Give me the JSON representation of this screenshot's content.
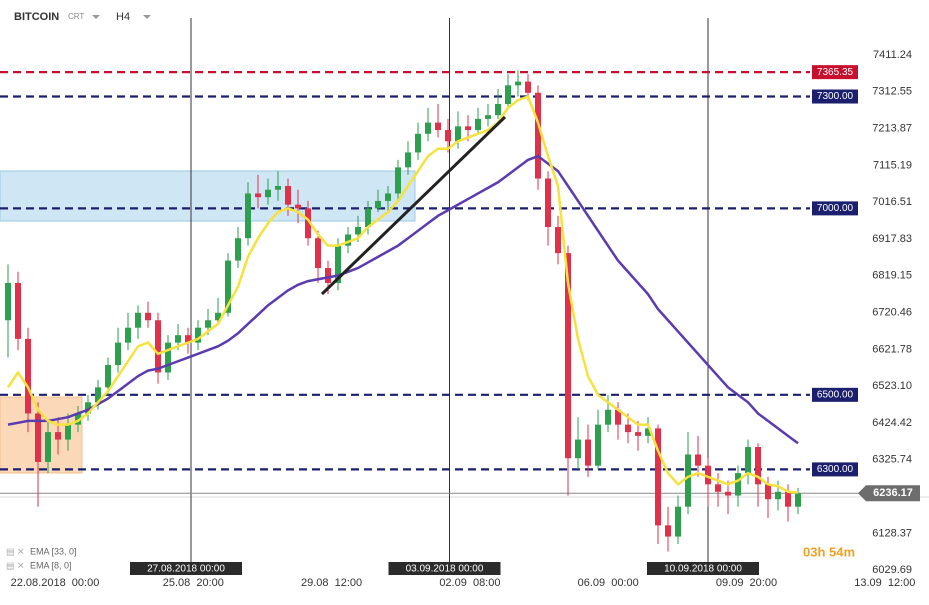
{
  "chart_data": {
    "type": "candlestick",
    "header": {
      "symbol": "BITCOIN",
      "source": "CRT",
      "timeframe": "H4"
    },
    "countdown": "03h 54m",
    "ylim": [
      5990,
      7532
    ],
    "yticks": [
      7411.24,
      7312.55,
      7213.87,
      7115.19,
      7016.51,
      6917.83,
      6819.15,
      6720.46,
      6621.78,
      {
        "value": 6523.1,
        "label": "6523.10"
      },
      6424.42,
      6325.74,
      6128.37,
      6029.69
    ],
    "xlabels": [
      "22.08.2018  00:00",
      "25.08  20:00",
      "29.08  12:00",
      "02.09  08:00",
      "06.09  00:00",
      "09.09  20:00",
      "13.09  12:00"
    ],
    "markers": [
      "27.08.2018 00:00",
      "03.09.2018 00:00",
      "10.09.2018 00:00"
    ],
    "up_color": "#2e9e4f",
    "down_color": "#e0314b",
    "levels": [
      {
        "value": 7365.35,
        "color": "#c8102e"
      },
      {
        "value": 7300,
        "label": "7300.00",
        "color": "#1b1f6e"
      },
      {
        "value": 7000,
        "label": "7000.00",
        "color": "#1b1f6e"
      },
      {
        "value": 6500,
        "label": "6500.00",
        "color": "#1b1f6e"
      },
      {
        "value": 6300,
        "label": "6300.00",
        "color": "#1b1f6e"
      }
    ],
    "last_price": 6236.17,
    "candles": [
      [
        6700,
        6850,
        6600,
        6800
      ],
      [
        6800,
        6830,
        6620,
        6650
      ],
      [
        6650,
        6680,
        6400,
        6450
      ],
      [
        6450,
        6480,
        6200,
        6320
      ],
      [
        6320,
        6430,
        6290,
        6400
      ],
      [
        6400,
        6440,
        6340,
        6380
      ],
      [
        6380,
        6450,
        6350,
        6420
      ],
      [
        6420,
        6470,
        6400,
        6450
      ],
      [
        6450,
        6500,
        6430,
        6480
      ],
      [
        6480,
        6540,
        6460,
        6520
      ],
      [
        6520,
        6600,
        6500,
        6580
      ],
      [
        6580,
        6680,
        6560,
        6640
      ],
      [
        6640,
        6720,
        6620,
        6680
      ],
      [
        6680,
        6740,
        6650,
        6720
      ],
      [
        6720,
        6750,
        6680,
        6700
      ],
      [
        6700,
        6720,
        6530,
        6560
      ],
      [
        6560,
        6660,
        6540,
        6640
      ],
      [
        6640,
        6690,
        6620,
        6660
      ],
      [
        6660,
        6680,
        6610,
        6640
      ],
      [
        6640,
        6700,
        6620,
        6680
      ],
      [
        6680,
        6730,
        6660,
        6700
      ],
      [
        6700,
        6760,
        6690,
        6720
      ],
      [
        6720,
        6880,
        6710,
        6860
      ],
      [
        6860,
        6950,
        6840,
        6920
      ],
      [
        6920,
        7070,
        6900,
        7040
      ],
      [
        7040,
        7090,
        7000,
        7030
      ],
      [
        7030,
        7080,
        7010,
        7050
      ],
      [
        7050,
        7100,
        7020,
        7060
      ],
      [
        7060,
        7080,
        6980,
        7010
      ],
      [
        7010,
        7050,
        6960,
        7000
      ],
      [
        7000,
        7020,
        6900,
        6920
      ],
      [
        6920,
        6940,
        6800,
        6840
      ],
      [
        6840,
        6860,
        6770,
        6800
      ],
      [
        6800,
        6920,
        6780,
        6900
      ],
      [
        6900,
        6950,
        6880,
        6930
      ],
      [
        6930,
        6980,
        6910,
        6950
      ],
      [
        6950,
        7020,
        6930,
        7000
      ],
      [
        7000,
        7050,
        6990,
        7020
      ],
      [
        7020,
        7060,
        6990,
        7040
      ],
      [
        7040,
        7130,
        7020,
        7110
      ],
      [
        7110,
        7180,
        7090,
        7150
      ],
      [
        7150,
        7230,
        7130,
        7200
      ],
      [
        7200,
        7270,
        7180,
        7230
      ],
      [
        7230,
        7280,
        7190,
        7210
      ],
      [
        7210,
        7240,
        7150,
        7180
      ],
      [
        7180,
        7260,
        7160,
        7220
      ],
      [
        7220,
        7250,
        7180,
        7210
      ],
      [
        7210,
        7270,
        7200,
        7240
      ],
      [
        7240,
        7280,
        7220,
        7250
      ],
      [
        7250,
        7320,
        7240,
        7280
      ],
      [
        7280,
        7360,
        7270,
        7330
      ],
      [
        7330,
        7370,
        7300,
        7340
      ],
      [
        7340,
        7360,
        7290,
        7310
      ],
      [
        7310,
        7330,
        7050,
        7080
      ],
      [
        7080,
        7100,
        6900,
        6950
      ],
      [
        6950,
        6980,
        6850,
        6880
      ],
      [
        6880,
        6900,
        6230,
        6330
      ],
      [
        6330,
        6440,
        6300,
        6380
      ],
      [
        6380,
        6420,
        6280,
        6310
      ],
      [
        6310,
        6460,
        6300,
        6420
      ],
      [
        6420,
        6500,
        6400,
        6460
      ],
      [
        6460,
        6480,
        6380,
        6420
      ],
      [
        6420,
        6450,
        6370,
        6400
      ],
      [
        6400,
        6430,
        6350,
        6390
      ],
      [
        6390,
        6440,
        6370,
        6410
      ],
      [
        6410,
        6420,
        6100,
        6150
      ],
      [
        6150,
        6200,
        6080,
        6120
      ],
      [
        6120,
        6230,
        6100,
        6200
      ],
      [
        6200,
        6400,
        6180,
        6340
      ],
      [
        6340,
        6390,
        6280,
        6310
      ],
      [
        6310,
        6330,
        6200,
        6260
      ],
      [
        6260,
        6290,
        6200,
        6240
      ],
      [
        6240,
        6270,
        6180,
        6230
      ],
      [
        6230,
        6310,
        6200,
        6290
      ],
      [
        6290,
        6380,
        6260,
        6360
      ],
      [
        6360,
        6370,
        6200,
        6260
      ],
      [
        6260,
        6280,
        6170,
        6220
      ],
      [
        6220,
        6270,
        6190,
        6240
      ],
      [
        6240,
        6260,
        6160,
        6200
      ],
      [
        6200,
        6250,
        6180,
        6236.17
      ]
    ],
    "series": [
      {
        "name": "EMA [33, 0]",
        "color": "#5a3bb0",
        "values": [
          6420,
          6425,
          6430,
          6430,
          6430,
          6435,
          6440,
          6450,
          6460,
          6475,
          6490,
          6510,
          6530,
          6550,
          6565,
          6570,
          6580,
          6590,
          6600,
          6610,
          6620,
          6630,
          6645,
          6665,
          6690,
          6715,
          6740,
          6760,
          6780,
          6795,
          6805,
          6810,
          6815,
          6820,
          6830,
          6840,
          6855,
          6870,
          6885,
          6900,
          6920,
          6940,
          6960,
          6980,
          6995,
          7010,
          7025,
          7040,
          7055,
          7070,
          7090,
          7110,
          7130,
          7140,
          7120,
          7100,
          7060,
          7020,
          6980,
          6940,
          6900,
          6860,
          6830,
          6800,
          6770,
          6730,
          6700,
          6670,
          6640,
          6610,
          6580,
          6550,
          6520,
          6500,
          6480,
          6450,
          6430,
          6410,
          6390,
          6370
        ]
      },
      {
        "name": "EMA [8, 0]",
        "color": "#f5e23c",
        "values": [
          6520,
          6560,
          6520,
          6460,
          6430,
          6420,
          6420,
          6430,
          6450,
          6480,
          6510,
          6550,
          6590,
          6630,
          6640,
          6610,
          6620,
          6630,
          6640,
          6650,
          6670,
          6690,
          6740,
          6790,
          6870,
          6920,
          6960,
          6990,
          7000,
          6990,
          6970,
          6930,
          6900,
          6900,
          6910,
          6920,
          6950,
          6970,
          6990,
          7020,
          7060,
          7100,
          7140,
          7160,
          7160,
          7180,
          7190,
          7200,
          7210,
          7230,
          7270,
          7290,
          7300,
          7230,
          7140,
          7060,
          6800,
          6650,
          6550,
          6500,
          6480,
          6460,
          6440,
          6420,
          6420,
          6350,
          6290,
          6260,
          6280,
          6290,
          6280,
          6270,
          6260,
          6270,
          6290,
          6280,
          6260,
          6255,
          6240,
          6238
        ]
      }
    ]
  }
}
